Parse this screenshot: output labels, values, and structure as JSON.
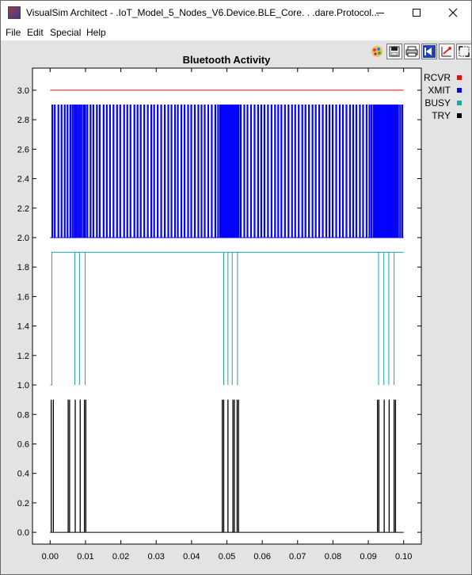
{
  "window": {
    "title": "VisualSim Architect - .IoT_Model_5_Nodes_V6.Device.BLE_Core. . .dare.Protocol...",
    "minimize_icon": "minimize-icon",
    "maximize_icon": "maximize-icon",
    "close_icon": "close-icon"
  },
  "menu": [
    "File",
    "Edit",
    "Special",
    "Help"
  ],
  "toolbar": [
    "palette-icon",
    "save-icon",
    "print-icon",
    "reset-axes-icon",
    "set-axes-icon",
    "fill-icon"
  ],
  "chart_data": {
    "type": "line",
    "title": "Bluetooth Activity",
    "xlabel": "",
    "ylabel": "",
    "xlim": [
      -0.005,
      0.105
    ],
    "ylim": [
      -0.08,
      3.15
    ],
    "x_ticks": [
      "0.00",
      "0.01",
      "0.02",
      "0.03",
      "0.04",
      "0.05",
      "0.06",
      "0.07",
      "0.08",
      "0.09",
      "0.10"
    ],
    "y_ticks": [
      "0.0",
      "0.2",
      "0.4",
      "0.6",
      "0.8",
      "1.0",
      "1.2",
      "1.4",
      "1.6",
      "1.8",
      "2.0",
      "2.2",
      "2.4",
      "2.6",
      "2.8",
      "3.0"
    ],
    "grid": false,
    "legend_position": "top-right",
    "series": [
      {
        "name": "RCVR",
        "color": "#ff0000",
        "kind": "level",
        "x_range": [
          0.0,
          0.1
        ],
        "value": 3.0
      },
      {
        "name": "XMIT",
        "color": "#0000ff",
        "kind": "pulses",
        "low": 2.0,
        "high": 2.9,
        "x_range": [
          0.0,
          0.1
        ],
        "pulse_x": [
          0.0005,
          0.0012,
          0.0022,
          0.0031,
          0.004,
          0.0048,
          0.0056,
          0.0062,
          0.0067,
          0.0072,
          0.0077,
          0.0082,
          0.0087,
          0.0093,
          0.0098,
          0.0104,
          0.0113,
          0.0121,
          0.0131,
          0.0139,
          0.015,
          0.0159,
          0.0168,
          0.0178,
          0.0188,
          0.0197,
          0.0208,
          0.0217,
          0.0226,
          0.0237,
          0.0246,
          0.0255,
          0.0265,
          0.0275,
          0.0285,
          0.0293,
          0.0303,
          0.0313,
          0.0323,
          0.0333,
          0.0342,
          0.0352,
          0.036,
          0.037,
          0.0379,
          0.0389,
          0.0398,
          0.0408,
          0.0418,
          0.0427,
          0.0436,
          0.0446,
          0.0456,
          0.0466,
          0.0474,
          0.048,
          0.0484,
          0.0488,
          0.0492,
          0.0496,
          0.05,
          0.0504,
          0.0508,
          0.0512,
          0.0516,
          0.052,
          0.0524,
          0.0528,
          0.0532,
          0.0538,
          0.0548,
          0.0557,
          0.0567,
          0.0577,
          0.0587,
          0.0596,
          0.0605,
          0.0615,
          0.0625,
          0.0635,
          0.0644,
          0.0653,
          0.0663,
          0.0673,
          0.0683,
          0.0692,
          0.0702,
          0.0712,
          0.0721,
          0.0731,
          0.0741,
          0.075,
          0.076,
          0.077,
          0.078,
          0.0789,
          0.0798,
          0.0808,
          0.0818,
          0.0827,
          0.0837,
          0.0847,
          0.0856,
          0.0865,
          0.0875,
          0.0884,
          0.0894,
          0.0902,
          0.0908,
          0.0914,
          0.0918,
          0.0922,
          0.0926,
          0.093,
          0.0934,
          0.0938,
          0.0942,
          0.0946,
          0.095,
          0.0954,
          0.0958,
          0.0962,
          0.0966,
          0.097,
          0.0974,
          0.0978,
          0.0983,
          0.0989,
          0.0995
        ],
        "pulse_width": 0.00025
      },
      {
        "name": "BUSY",
        "color": "#1aa6a6",
        "kind": "level_with_dips",
        "x_start": 0.0005,
        "x_end": 0.1,
        "value": 1.9,
        "low": 1.0,
        "dips_x": [
          0.007,
          0.0083,
          0.0099,
          0.0491,
          0.0503,
          0.0515,
          0.053,
          0.0929,
          0.0944,
          0.0958,
          0.0973
        ]
      },
      {
        "name": "TRY",
        "color": "#000000",
        "kind": "spikes",
        "baseline": 0.0,
        "high": 0.9,
        "x_range": [
          0.0,
          0.1
        ],
        "spike_x": [
          0.0003,
          0.0009,
          0.0051,
          0.0055,
          0.0071,
          0.0085,
          0.0097,
          0.0101,
          0.0487,
          0.0491,
          0.0503,
          0.0517,
          0.0521,
          0.0529,
          0.0533,
          0.0926,
          0.093,
          0.0945,
          0.0959,
          0.0973,
          0.0977
        ]
      }
    ]
  }
}
